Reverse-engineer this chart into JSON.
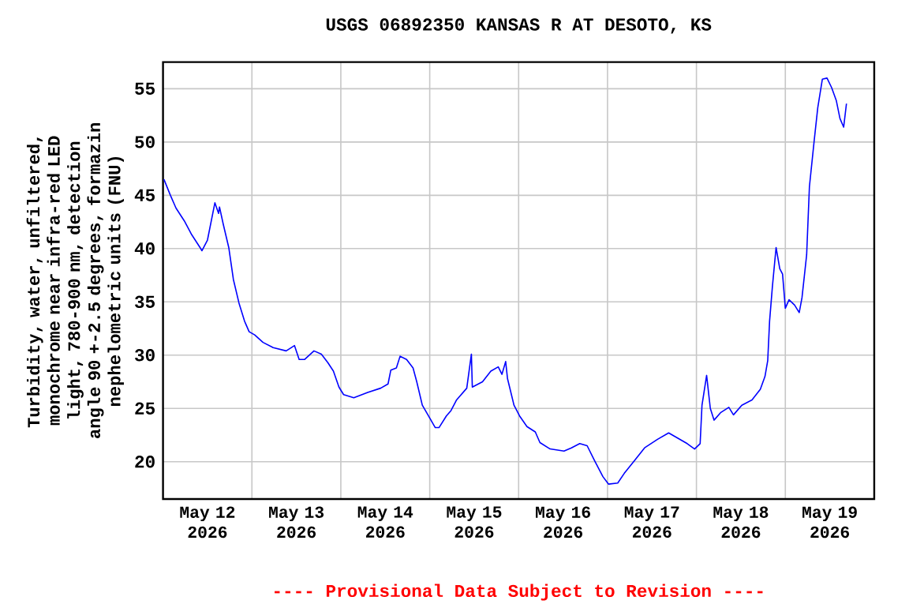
{
  "chart_data": {
    "type": "line",
    "title": "USGS 06892350 KANSAS R AT DESOTO, KS",
    "ylabel": "Turbidity, water, unfiltered, monochrome near infra-red LED light, 780-900 nm, detection angle 90 +-2.5 degrees, formazin nephelometric units (FNU)",
    "annotations": [
      "---- Provisional Data Subject to Revision ----"
    ],
    "color": "#0000ff",
    "grid": true,
    "xlim": [
      "2026-05-12T00:00",
      "2026-05-20T00:00"
    ],
    "ylim": [
      16.5,
      57.5
    ],
    "yticks": [
      20,
      25,
      30,
      35,
      40,
      45,
      50,
      55
    ],
    "xticks": [
      {
        "value": "2026-05-12T12:00",
        "label": "May 12 2026"
      },
      {
        "value": "2026-05-13T00:00",
        "label": null
      },
      {
        "value": "2026-05-13T12:00",
        "label": "May 13 2026"
      },
      {
        "value": "2026-05-14T00:00",
        "label": null
      },
      {
        "value": "2026-05-14T12:00",
        "label": "May 14 2026"
      },
      {
        "value": "2026-05-15T00:00",
        "label": null
      },
      {
        "value": "2026-05-15T12:00",
        "label": "May 15 2026"
      },
      {
        "value": "2026-05-16T00:00",
        "label": null
      },
      {
        "value": "2026-05-16T12:00",
        "label": "May 16 2026"
      },
      {
        "value": "2026-05-17T00:00",
        "label": null
      },
      {
        "value": "2026-05-17T12:00",
        "label": "May 17 2026"
      },
      {
        "value": "2026-05-18T00:00",
        "label": null
      },
      {
        "value": "2026-05-18T12:00",
        "label": "May 18 2026"
      },
      {
        "value": "2026-05-19T00:00",
        "label": null
      },
      {
        "value": "2026-05-19T12:00",
        "label": "May 19 2026"
      }
    ],
    "x": [
      "2026-05-12T00:15",
      "2026-05-12T02:00",
      "2026-05-12T03:30",
      "2026-05-12T05:45",
      "2026-05-12T07:45",
      "2026-05-12T10:00",
      "2026-05-12T10:30",
      "2026-05-12T12:00",
      "2026-05-12T14:00",
      "2026-05-12T15:00",
      "2026-05-12T15:15",
      "2026-05-12T16:15",
      "2026-05-12T17:45",
      "2026-05-12T19:00",
      "2026-05-12T20:30",
      "2026-05-12T22:00",
      "2026-05-12T23:15",
      "2026-05-13T00:45",
      "2026-05-13T03:00",
      "2026-05-13T05:45",
      "2026-05-13T09:15",
      "2026-05-13T11:30",
      "2026-05-13T12:45",
      "2026-05-13T14:15",
      "2026-05-13T16:45",
      "2026-05-13T18:45",
      "2026-05-13T20:30",
      "2026-05-13T22:00",
      "2026-05-13T23:30",
      "2026-05-14T00:45",
      "2026-05-14T03:30",
      "2026-05-14T07:15",
      "2026-05-14T10:45",
      "2026-05-14T12:45",
      "2026-05-14T13:30",
      "2026-05-14T15:00",
      "2026-05-14T16:00",
      "2026-05-14T17:45",
      "2026-05-14T19:30",
      "2026-05-14T20:30",
      "2026-05-14T22:00",
      "2026-05-15T00:00",
      "2026-05-15T01:30",
      "2026-05-15T02:30",
      "2026-05-15T04:30",
      "2026-05-15T05:45",
      "2026-05-15T07:15",
      "2026-05-15T10:00",
      "2026-05-15T11:15",
      "2026-05-15T11:30",
      "2026-05-15T14:15",
      "2026-05-15T16:30",
      "2026-05-15T18:30",
      "2026-05-15T19:30",
      "2026-05-15T20:30",
      "2026-05-15T21:00",
      "2026-05-15T22:45",
      "2026-05-16T00:15",
      "2026-05-16T02:15",
      "2026-05-16T04:30",
      "2026-05-16T05:45",
      "2026-05-16T08:30",
      "2026-05-16T12:15",
      "2026-05-16T14:15",
      "2026-05-16T16:30",
      "2026-05-16T18:30",
      "2026-05-16T20:30",
      "2026-05-16T22:45",
      "2026-05-17T00:15",
      "2026-05-17T02:45",
      "2026-05-17T04:30",
      "2026-05-17T07:15",
      "2026-05-17T10:00",
      "2026-05-17T13:30",
      "2026-05-17T16:30",
      "2026-05-17T18:30",
      "2026-05-17T21:30",
      "2026-05-17T23:30",
      "2026-05-18T01:00",
      "2026-05-18T01:30",
      "2026-05-18T02:45",
      "2026-05-18T03:45",
      "2026-05-18T04:45",
      "2026-05-18T06:30",
      "2026-05-18T08:45",
      "2026-05-18T10:00",
      "2026-05-18T12:15",
      "2026-05-18T15:00",
      "2026-05-18T17:15",
      "2026-05-18T18:30",
      "2026-05-18T19:15",
      "2026-05-18T19:45",
      "2026-05-18T20:30",
      "2026-05-18T21:30",
      "2026-05-18T22:30",
      "2026-05-18T23:15",
      "2026-05-19T00:00",
      "2026-05-19T01:00",
      "2026-05-19T02:30",
      "2026-05-19T03:45",
      "2026-05-19T04:30",
      "2026-05-19T05:45",
      "2026-05-19T06:30",
      "2026-05-19T07:45",
      "2026-05-19T08:45",
      "2026-05-19T10:00",
      "2026-05-19T11:15",
      "2026-05-19T12:30",
      "2026-05-19T13:45",
      "2026-05-19T14:45",
      "2026-05-19T15:45",
      "2026-05-19T16:30"
    ],
    "values": [
      46.5,
      45.0,
      43.8,
      42.6,
      41.3,
      40.1,
      39.8,
      40.8,
      44.3,
      43.3,
      43.9,
      42.3,
      40.1,
      37.1,
      34.9,
      33.2,
      32.2,
      31.9,
      31.2,
      30.7,
      30.4,
      30.9,
      29.6,
      29.6,
      30.4,
      30.1,
      29.3,
      28.5,
      27.0,
      26.3,
      26.0,
      26.5,
      26.9,
      27.3,
      28.6,
      28.8,
      29.9,
      29.6,
      28.8,
      27.5,
      25.3,
      24.1,
      23.2,
      23.2,
      24.3,
      24.8,
      25.8,
      26.9,
      30.1,
      27.0,
      27.5,
      28.5,
      28.9,
      28.2,
      29.4,
      27.8,
      25.3,
      24.3,
      23.3,
      22.8,
      21.8,
      21.2,
      21.0,
      21.3,
      21.7,
      21.5,
      20.1,
      18.6,
      17.9,
      18.0,
      18.9,
      20.1,
      21.3,
      22.1,
      22.7,
      22.3,
      21.7,
      21.2,
      21.7,
      25.3,
      28.1,
      25.0,
      23.9,
      24.6,
      25.1,
      24.4,
      25.3,
      25.8,
      26.8,
      28.0,
      29.5,
      33.2,
      36.4,
      40.1,
      38.1,
      37.6,
      34.4,
      35.2,
      34.7,
      34.0,
      35.4,
      39.4,
      45.8,
      50.0,
      53.2,
      55.9,
      56.0,
      55.1,
      53.9,
      52.2,
      51.4,
      53.6
    ]
  }
}
